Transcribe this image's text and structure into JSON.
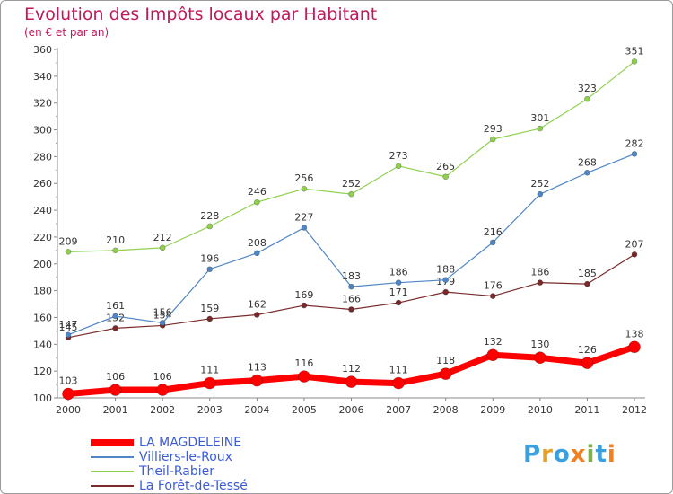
{
  "title": "Evolution des Impôts locaux par Habitant",
  "subtitle": "(en € et par an)",
  "brand": {
    "text": "Proxiti",
    "letter_colors": [
      "#3aa0e0",
      "#e8a020",
      "#3aa0e0",
      "#f08020",
      "#7cb342",
      "#3aa0e0",
      "#f08020"
    ]
  },
  "chart_data": {
    "type": "line",
    "x": [
      2000,
      2001,
      2002,
      2003,
      2004,
      2005,
      2006,
      2007,
      2008,
      2009,
      2010,
      2011,
      2012
    ],
    "ylim": [
      100,
      360
    ],
    "yticks": [
      100,
      120,
      140,
      160,
      180,
      200,
      220,
      240,
      260,
      280,
      300,
      320,
      340,
      360
    ],
    "grid": false,
    "legend_position": "bottom-left",
    "series": [
      {
        "name": "La Forêt-de-Tessé",
        "color": "#7a2a2a",
        "width": 1.2,
        "values": [
          145,
          152,
          154,
          159,
          162,
          169,
          166,
          171,
          179,
          176,
          186,
          185,
          207
        ],
        "data_labels": [
          "145",
          "152",
          "154",
          "159",
          "162",
          "169",
          "166",
          "171",
          "179",
          "176",
          "186",
          "185",
          "207"
        ]
      },
      {
        "name": "Villiers-le-Roux",
        "color": "#4f86c6",
        "width": 1.2,
        "values": [
          147,
          161,
          156,
          196,
          208,
          227,
          183,
          186,
          188,
          216,
          252,
          268,
          282
        ],
        "data_labels": [
          "147",
          "161",
          "156",
          "196",
          "208",
          "227",
          "183",
          "186",
          "188",
          "216",
          "252",
          "268",
          "282"
        ]
      },
      {
        "name": "Theil-Rabier",
        "color": "#8fd14f",
        "width": 1.2,
        "values": [
          209,
          210,
          212,
          228,
          246,
          256,
          252,
          273,
          265,
          293,
          301,
          323,
          351
        ],
        "data_labels": [
          "209",
          "210",
          "212",
          "228",
          "246",
          "256",
          "252",
          "273",
          "265",
          "293",
          "301",
          "323",
          "351"
        ]
      },
      {
        "name": "LA MAGDELEINE",
        "color": "#ff0000",
        "width": 7,
        "values": [
          103,
          106,
          106,
          111,
          113,
          116,
          112,
          111,
          118,
          132,
          130,
          126,
          138
        ],
        "data_labels": [
          "103",
          "106",
          "106",
          "111",
          "113",
          "116",
          "112",
          "111",
          "118",
          "132",
          "130",
          "126",
          "138"
        ]
      }
    ]
  },
  "legend": [
    {
      "label": "LA MAGDELEINE",
      "color": "#ff0000",
      "text_color": "#3b5bdb",
      "swatch_height": 8
    },
    {
      "label": "Villiers-le-Roux",
      "color": "#4f86c6",
      "text_color": "#3b5bdb",
      "swatch_height": 2
    },
    {
      "label": "Theil-Rabier",
      "color": "#8fd14f",
      "text_color": "#3b5bdb",
      "swatch_height": 2
    },
    {
      "label": "La Forêt-de-Tessé",
      "color": "#7a2a2a",
      "text_color": "#3b5bdb",
      "swatch_height": 2
    }
  ]
}
